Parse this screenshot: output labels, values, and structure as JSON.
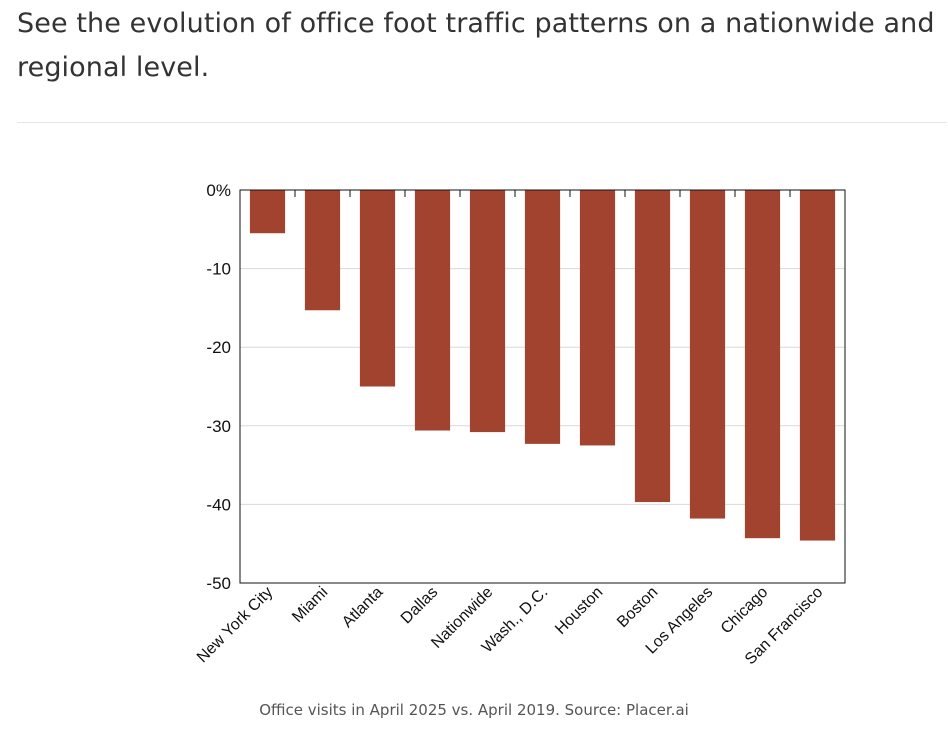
{
  "heading": "See the evolution of office foot traffic patterns on a nationwide and regional level.",
  "caption": "Office visits in April 2025 vs. April 2019. Source: Placer.ai",
  "colors": {
    "bar": "#a1432f",
    "grid": "#d9d9d9",
    "axis": "#111111"
  },
  "chart_data": {
    "type": "bar",
    "title": "",
    "xlabel": "",
    "ylabel": "",
    "ylim": [
      -50,
      0
    ],
    "yticks": [
      0,
      -10,
      -20,
      -30,
      -40,
      -50
    ],
    "ytick_labels": [
      "0%",
      "-10",
      "-20",
      "-30",
      "-40",
      "-50"
    ],
    "categories": [
      "New York City",
      "Miami",
      "Atlanta",
      "Dallas",
      "Nationwide",
      "Wash., D.C.",
      "Houston",
      "Boston",
      "Los Angeles",
      "Chicago",
      "San Francisco"
    ],
    "values": [
      -5.5,
      -15.3,
      -25.0,
      -30.6,
      -30.8,
      -32.3,
      -32.5,
      -39.7,
      -41.8,
      -44.3,
      -44.6
    ]
  }
}
